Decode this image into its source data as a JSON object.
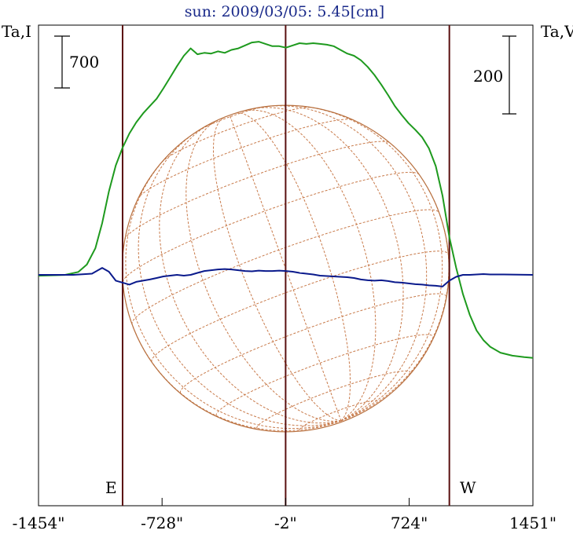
{
  "title": "sun: 2009/03/05: 5.45[cm]",
  "chart_data": {
    "type": "line",
    "title": "sun: 2009/03/05: 5.45[cm]",
    "x_axis": {
      "range": [
        -1454,
        1451
      ],
      "ticks": [
        -1454,
        -728,
        -2,
        724,
        1451
      ],
      "tick_labels": [
        "-1454\"",
        "-728\"",
        "-2\"",
        "724\"",
        "1451\""
      ]
    },
    "left_axis": {
      "label": "Ta,I",
      "scale_bar": 700
    },
    "right_axis": {
      "label": "Ta,V",
      "scale_bar": 200
    },
    "limb_markers": [
      {
        "label": "E",
        "x": -960
      },
      {
        "label": "W",
        "x": 960
      }
    ],
    "center_marker": -2,
    "disk_radius": 960,
    "series": [
      {
        "color": "#1e9a1e",
        "axis": "left",
        "points": [
          [
            -1454,
            10
          ],
          [
            -1300,
            20
          ],
          [
            -1220,
            60
          ],
          [
            -1170,
            160
          ],
          [
            -1120,
            380
          ],
          [
            -1080,
            720
          ],
          [
            -1040,
            1150
          ],
          [
            -1000,
            1500
          ],
          [
            -960,
            1740
          ],
          [
            -920,
            1930
          ],
          [
            -880,
            2080
          ],
          [
            -840,
            2200
          ],
          [
            -800,
            2300
          ],
          [
            -760,
            2400
          ],
          [
            -720,
            2540
          ],
          [
            -680,
            2690
          ],
          [
            -640,
            2840
          ],
          [
            -600,
            2980
          ],
          [
            -560,
            3080
          ],
          [
            -520,
            3000
          ],
          [
            -480,
            3020
          ],
          [
            -440,
            3010
          ],
          [
            -400,
            3040
          ],
          [
            -360,
            3020
          ],
          [
            -320,
            3060
          ],
          [
            -280,
            3080
          ],
          [
            -240,
            3120
          ],
          [
            -200,
            3160
          ],
          [
            -160,
            3170
          ],
          [
            -120,
            3140
          ],
          [
            -80,
            3110
          ],
          [
            -40,
            3110
          ],
          [
            0,
            3090
          ],
          [
            40,
            3120
          ],
          [
            80,
            3150
          ],
          [
            120,
            3140
          ],
          [
            160,
            3150
          ],
          [
            200,
            3140
          ],
          [
            240,
            3130
          ],
          [
            280,
            3110
          ],
          [
            320,
            3060
          ],
          [
            360,
            3010
          ],
          [
            400,
            2980
          ],
          [
            440,
            2920
          ],
          [
            480,
            2830
          ],
          [
            520,
            2720
          ],
          [
            560,
            2590
          ],
          [
            600,
            2450
          ],
          [
            640,
            2300
          ],
          [
            680,
            2180
          ],
          [
            720,
            2070
          ],
          [
            760,
            1980
          ],
          [
            800,
            1880
          ],
          [
            840,
            1730
          ],
          [
            880,
            1490
          ],
          [
            920,
            1090
          ],
          [
            960,
            530
          ],
          [
            1000,
            120
          ],
          [
            1040,
            -240
          ],
          [
            1080,
            -520
          ],
          [
            1120,
            -730
          ],
          [
            1160,
            -860
          ],
          [
            1200,
            -950
          ],
          [
            1260,
            -1030
          ],
          [
            1330,
            -1070
          ],
          [
            1400,
            -1090
          ],
          [
            1451,
            -1100
          ]
        ]
      },
      {
        "color": "#0a1a8c",
        "axis": "right",
        "points": [
          [
            -1454,
            0
          ],
          [
            -1250,
            0
          ],
          [
            -1140,
            3
          ],
          [
            -1080,
            18
          ],
          [
            -1040,
            8
          ],
          [
            -1000,
            -15
          ],
          [
            -960,
            -20
          ],
          [
            -920,
            -25
          ],
          [
            -880,
            -18
          ],
          [
            -840,
            -15
          ],
          [
            -800,
            -12
          ],
          [
            -760,
            -8
          ],
          [
            -720,
            -4
          ],
          [
            -680,
            -2
          ],
          [
            -640,
            0
          ],
          [
            -600,
            -2
          ],
          [
            -560,
            0
          ],
          [
            -520,
            5
          ],
          [
            -480,
            10
          ],
          [
            -440,
            12
          ],
          [
            -400,
            14
          ],
          [
            -360,
            15
          ],
          [
            -320,
            14
          ],
          [
            -280,
            12
          ],
          [
            -240,
            10
          ],
          [
            -200,
            9
          ],
          [
            -160,
            11
          ],
          [
            -120,
            10
          ],
          [
            -80,
            10
          ],
          [
            -40,
            11
          ],
          [
            0,
            10
          ],
          [
            40,
            8
          ],
          [
            80,
            5
          ],
          [
            120,
            3
          ],
          [
            160,
            1
          ],
          [
            200,
            -2
          ],
          [
            240,
            -3
          ],
          [
            280,
            -4
          ],
          [
            320,
            -5
          ],
          [
            360,
            -6
          ],
          [
            400,
            -8
          ],
          [
            440,
            -12
          ],
          [
            480,
            -14
          ],
          [
            520,
            -15
          ],
          [
            560,
            -14
          ],
          [
            600,
            -16
          ],
          [
            640,
            -19
          ],
          [
            680,
            -20
          ],
          [
            720,
            -22
          ],
          [
            760,
            -24
          ],
          [
            800,
            -25
          ],
          [
            840,
            -27
          ],
          [
            880,
            -28
          ],
          [
            920,
            -30
          ],
          [
            960,
            -15
          ],
          [
            1000,
            -5
          ],
          [
            1040,
            0
          ],
          [
            1080,
            0
          ],
          [
            1160,
            2
          ],
          [
            1200,
            1
          ],
          [
            1280,
            1
          ],
          [
            1451,
            0
          ]
        ]
      }
    ]
  }
}
